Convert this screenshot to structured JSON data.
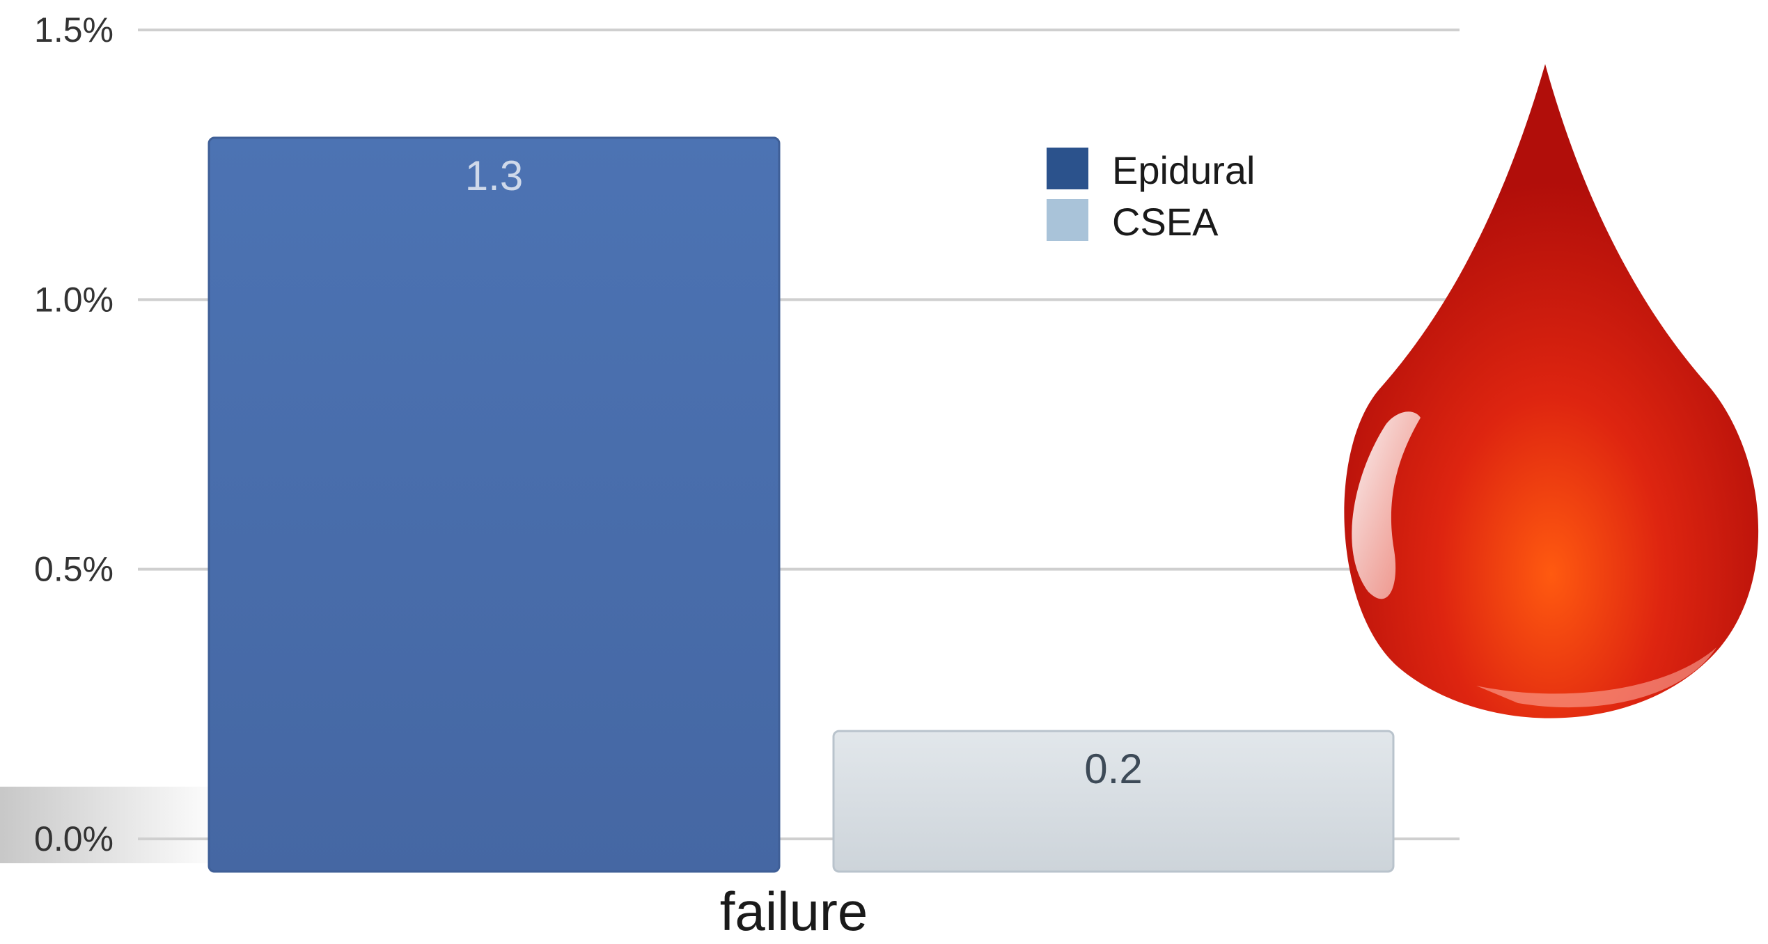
{
  "chart_data": {
    "type": "bar",
    "title": "",
    "xlabel": "",
    "ylabel": "",
    "categories": [
      "failure"
    ],
    "series": [
      {
        "name": "Epidural",
        "values": [
          1.3
        ],
        "color": "#4a6fae",
        "label_color": "#cfd9ea"
      },
      {
        "name": "CSEA",
        "values": [
          0.2
        ],
        "color": "#d7dde2",
        "label_color": "#3d4a57"
      }
    ],
    "ylim": [
      0,
      1.5
    ],
    "yticks": [
      {
        "value": 0.0,
        "label": "0.0%"
      },
      {
        "value": 0.5,
        "label": "0.5%"
      },
      {
        "value": 1.0,
        "label": "1.0%"
      },
      {
        "value": 1.5,
        "label": "1.5%"
      }
    ],
    "grid": true,
    "legend_position": "top-right",
    "legend_swatch_colors": [
      "#2b528c",
      "#a9c3d9"
    ],
    "data_labels": [
      "1.3",
      "0.2"
    ],
    "decoration": "blood-drop-icon"
  }
}
